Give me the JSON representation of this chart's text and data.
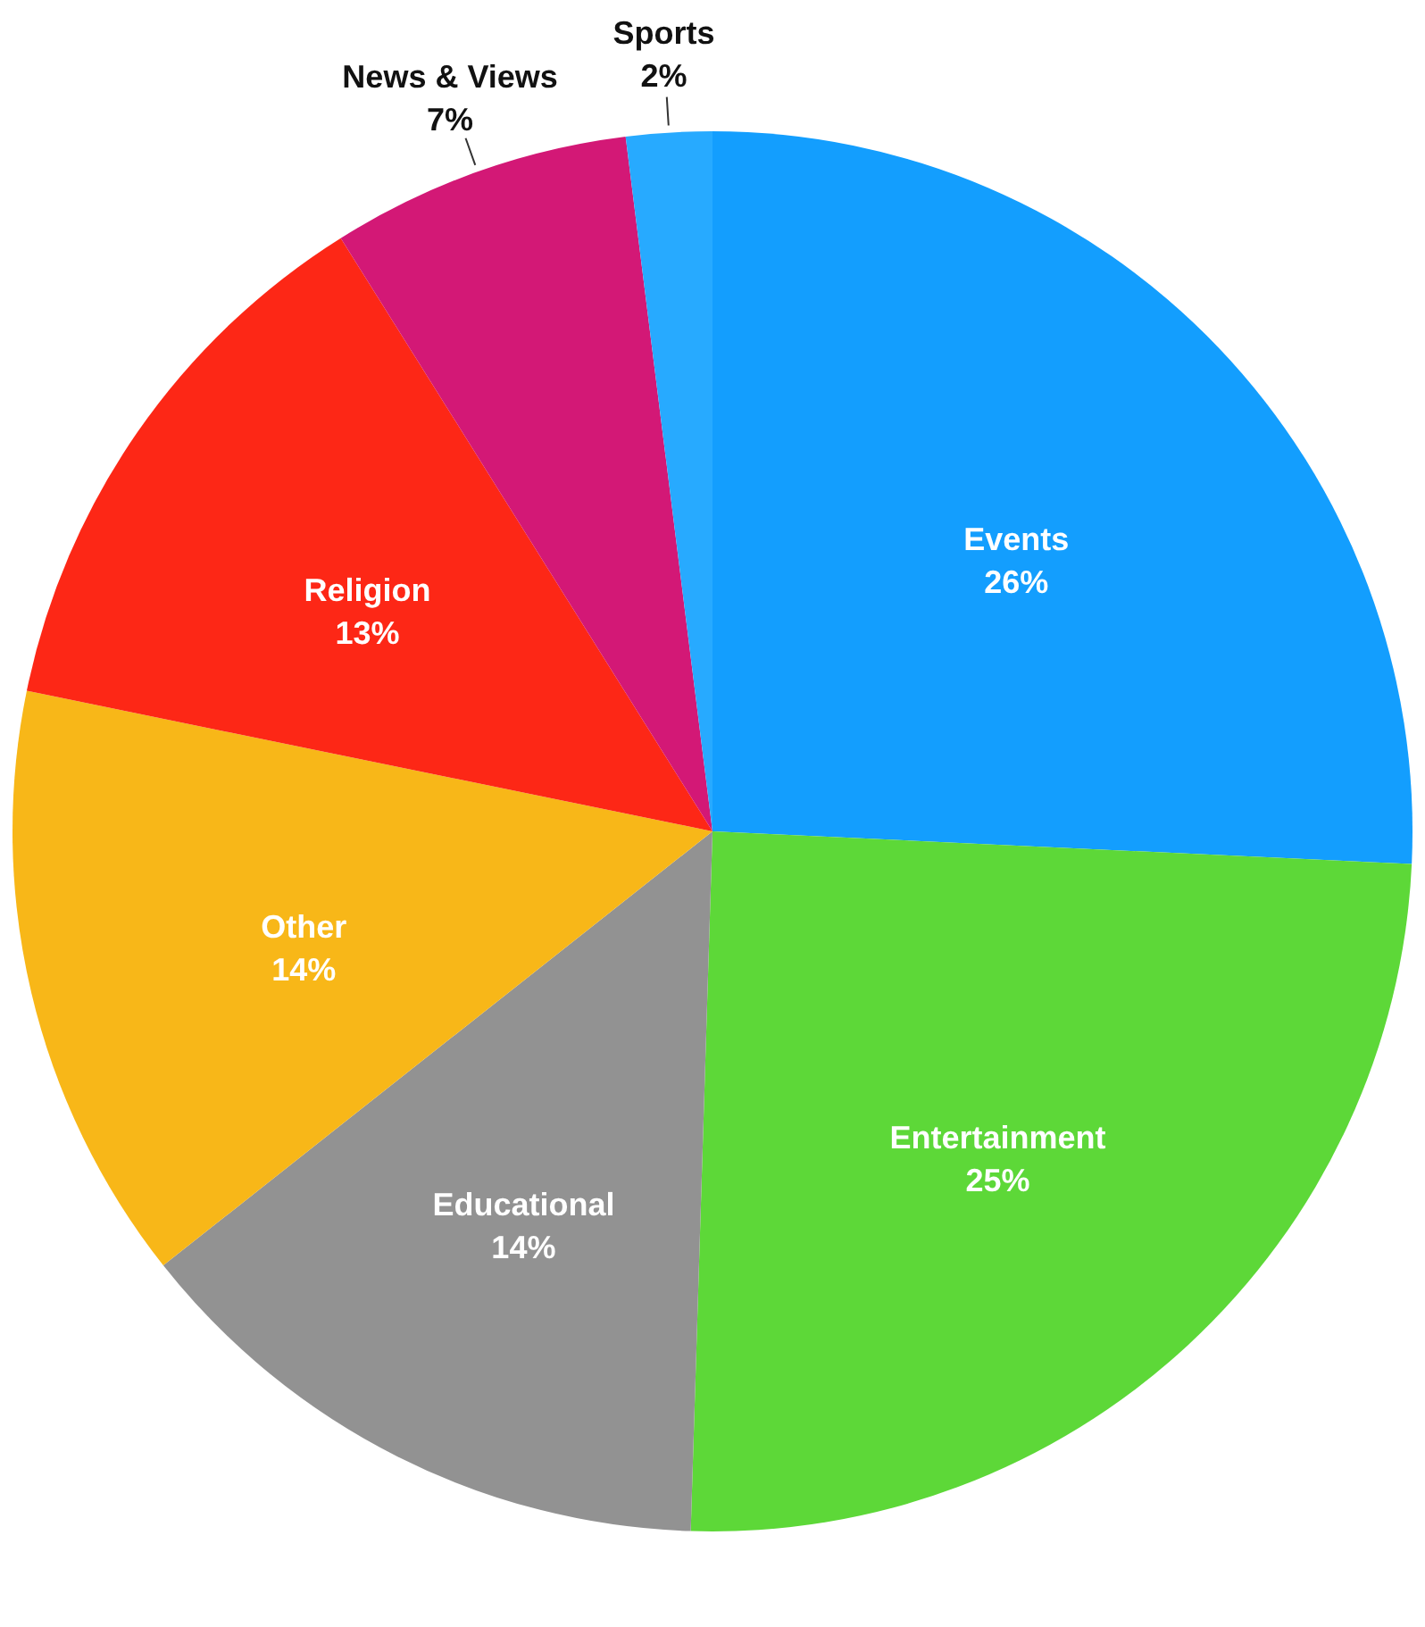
{
  "chart_data": {
    "type": "pie",
    "categories": [
      "Events",
      "Entertainment",
      "Educational",
      "Other",
      "Religion",
      "News & Views",
      "Sports"
    ],
    "values": [
      26,
      25,
      14,
      14,
      13,
      7,
      2
    ],
    "value_labels": [
      "26%",
      "25%",
      "14%",
      "14%",
      "13%",
      "7%",
      "2%"
    ],
    "colors": [
      "#139efe",
      "#5dd838",
      "#929292",
      "#f8b718",
      "#fd2716",
      "#d31876",
      "#27aaff"
    ],
    "legend": false
  }
}
